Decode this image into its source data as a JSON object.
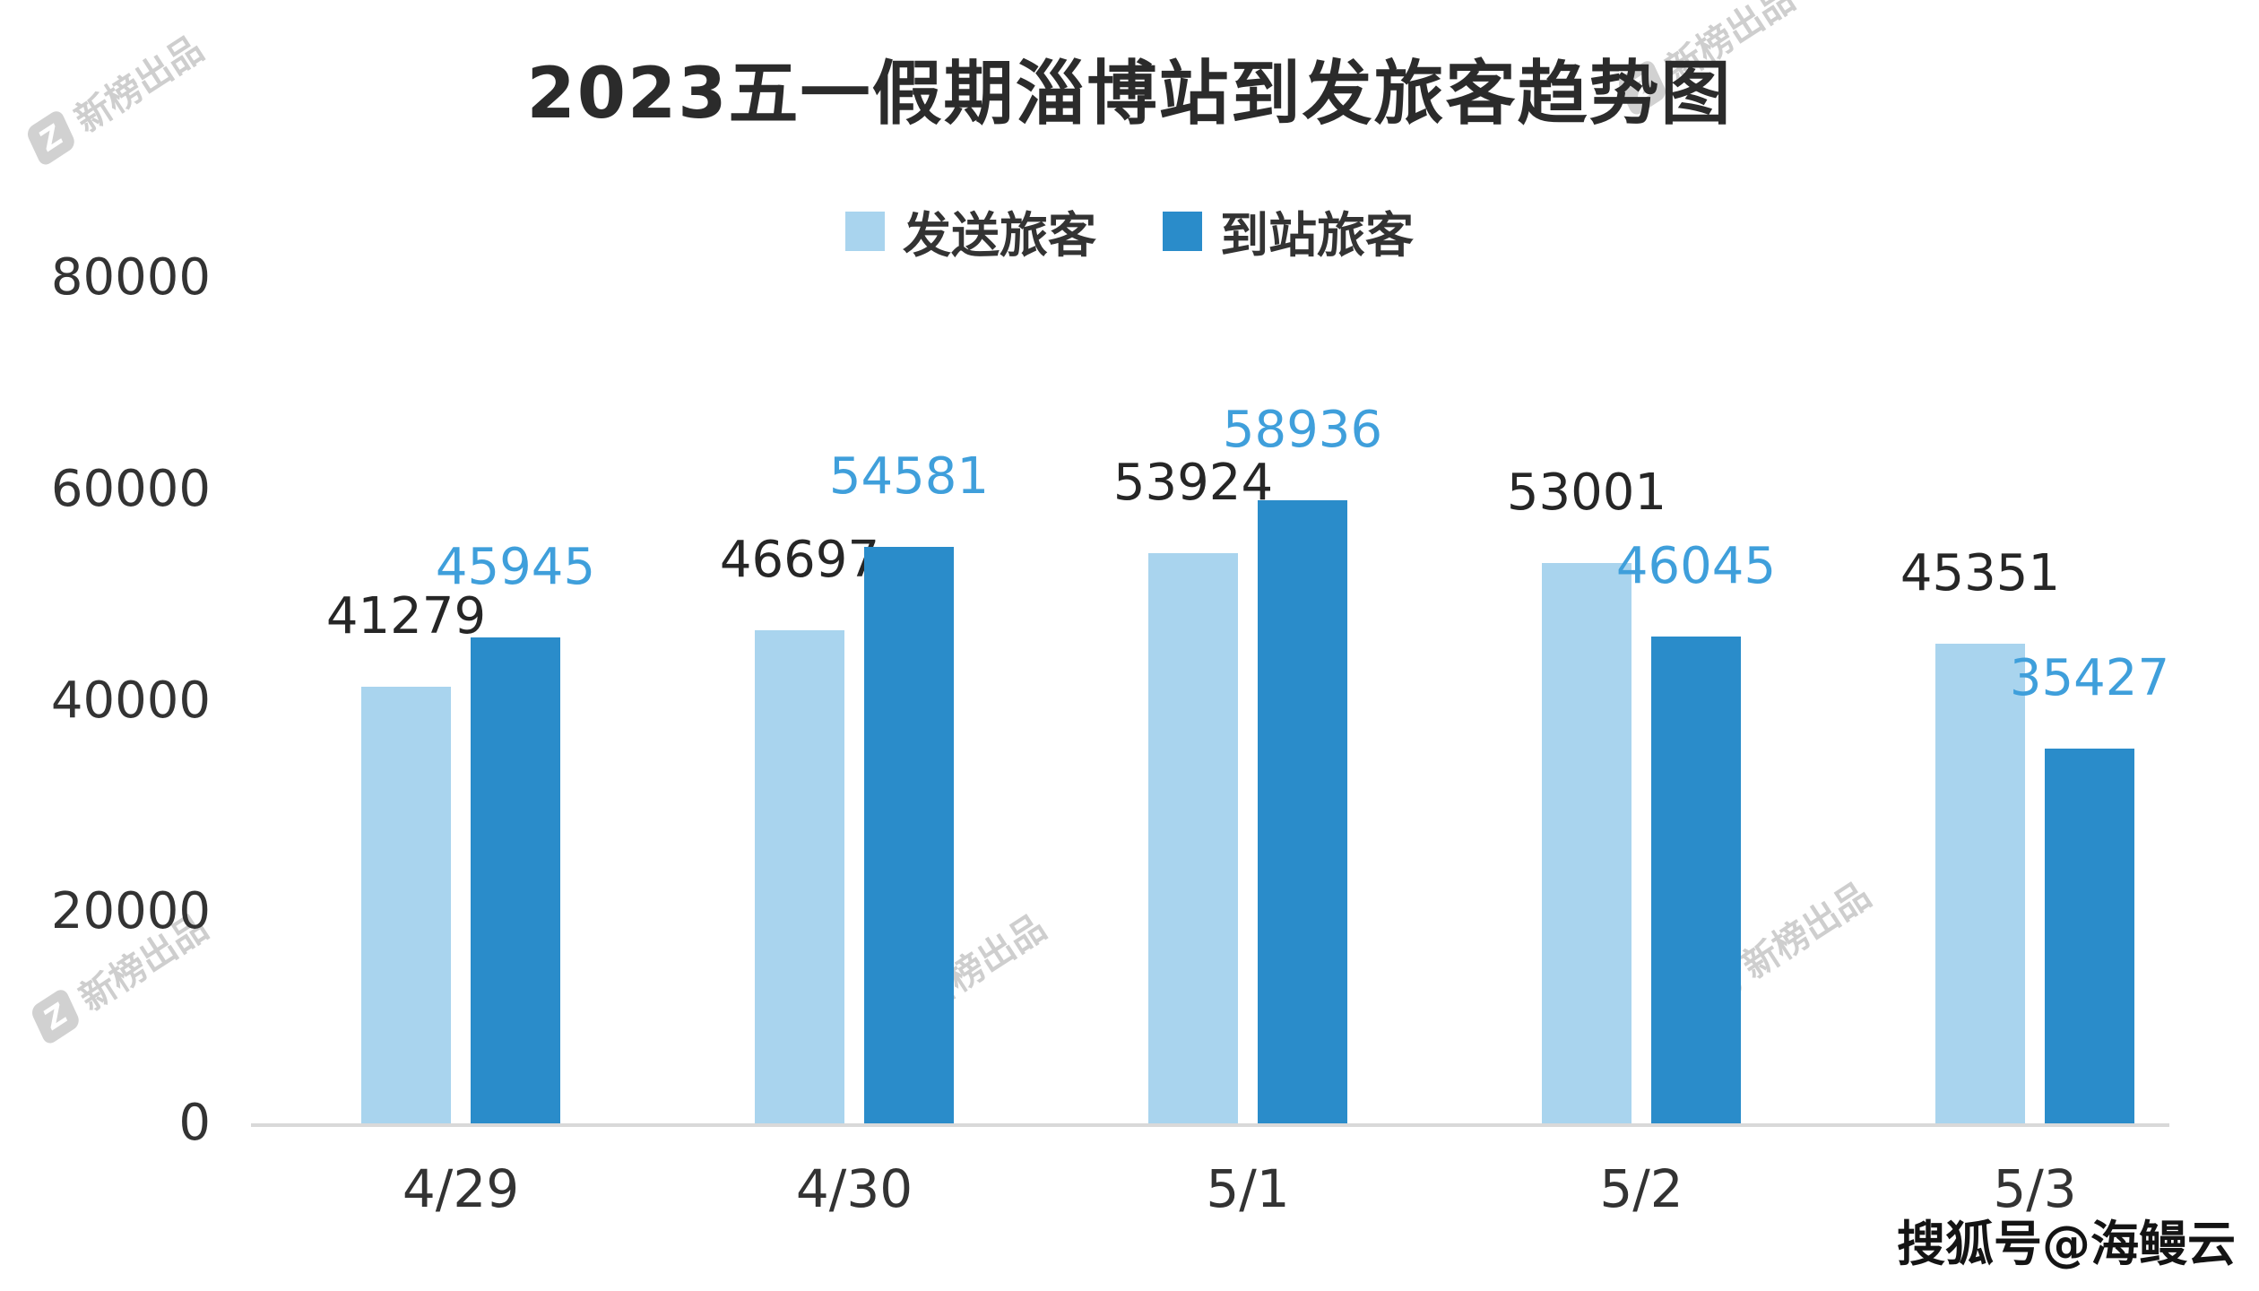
{
  "title": "2023五一假期淄博站到发旅客趋势图",
  "credit": "搜狐号@海鳗云",
  "watermark": {
    "logo": "Z",
    "text": "新榜出品"
  },
  "colors": {
    "depart_bar": "#a9d4ee",
    "arrive_bar": "#2a8cca",
    "depart_label": "#262626",
    "arrive_label": "#3f9fdb",
    "axis_line": "#d9d9d9"
  },
  "chart_data": {
    "type": "bar",
    "title": "2023五一假期淄博站到发旅客趋势图",
    "categories": [
      "4/29",
      "4/30",
      "5/1",
      "5/2",
      "5/3"
    ],
    "series": [
      {
        "name": "发送旅客",
        "color": "#a9d4ee",
        "label_color": "#262626",
        "values": [
          41279,
          46697,
          53924,
          53001,
          45351
        ]
      },
      {
        "name": "到站旅客",
        "color": "#2a8cca",
        "label_color": "#3f9fdb",
        "values": [
          45945,
          54581,
          58936,
          46045,
          35427
        ]
      }
    ],
    "xlabel": "",
    "ylabel": "",
    "ylim": [
      0,
      80000
    ],
    "yticks": [
      0,
      20000,
      40000,
      60000,
      80000
    ],
    "grid": false,
    "legend_position": "top",
    "data_labels": true
  }
}
